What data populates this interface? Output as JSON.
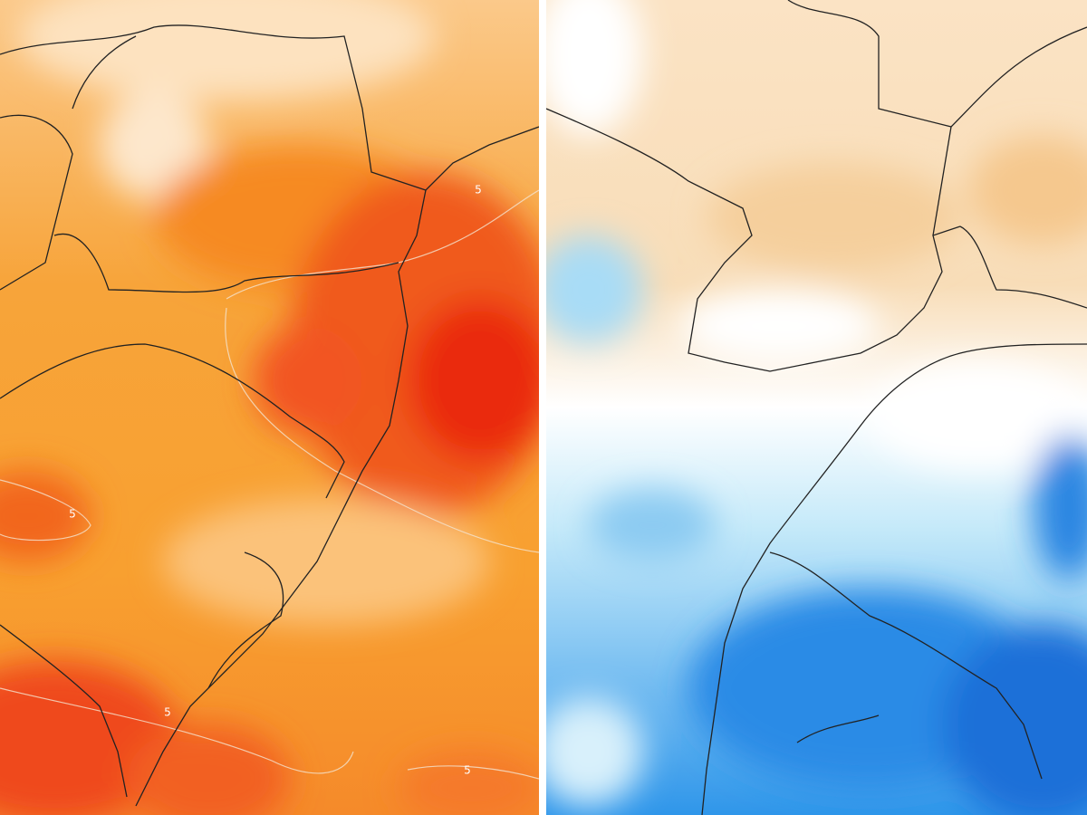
{
  "panels": [
    {
      "contour_labels": [
        "5",
        "5",
        "5",
        "5"
      ]
    },
    {
      "contour_labels": []
    }
  ]
}
